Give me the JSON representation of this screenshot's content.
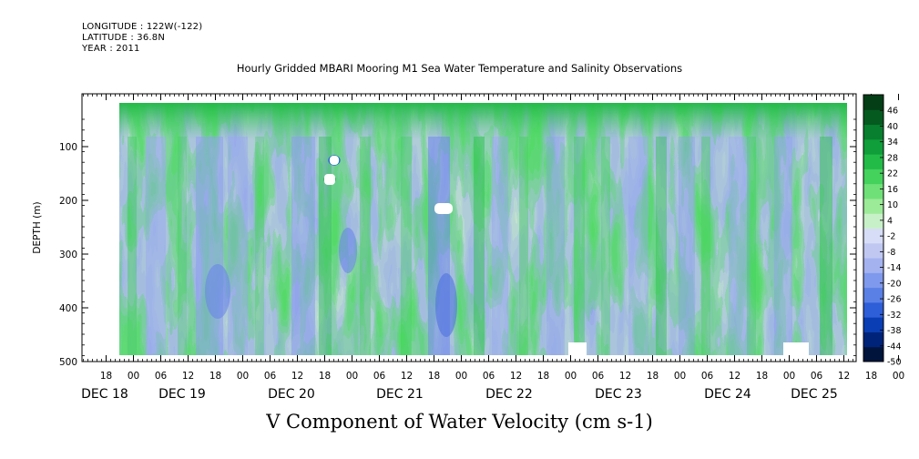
{
  "header": {
    "longitude": "LONGITUDE : 122W(-122)",
    "latitude": "LATITUDE : 36.8N",
    "year": "YEAR : 2011"
  },
  "title": "Hourly Gridded MBARI Mooring M1 Sea Water Temperature and Salinity Observations",
  "chart_data": {
    "type": "heatmap",
    "title": "Hourly Gridded MBARI Mooring M1 Sea Water Temperature and Salinity Observations",
    "xlabel": "V Component of Water Velocity (cm s-1)",
    "ylabel": "DEPTH (m)",
    "x_hour_ticks": [
      "18",
      "00",
      "06",
      "12",
      "18",
      "00",
      "06",
      "12",
      "18",
      "00",
      "06",
      "12",
      "18",
      "00",
      "06",
      "12",
      "18",
      "00",
      "06",
      "12",
      "18",
      "00",
      "06",
      "12",
      "18",
      "00",
      "06",
      "12",
      "18",
      "00",
      "06",
      "12"
    ],
    "x_date_labels": [
      "DEC 18",
      "DEC 19",
      "DEC 20",
      "DEC 21",
      "DEC 22",
      "DEC 23",
      "DEC 24",
      "DEC 25"
    ],
    "y_ticks": [
      "100",
      "200",
      "300",
      "400",
      "500"
    ],
    "ylim": [
      0,
      500
    ],
    "y_inverted": true,
    "colorbar_labels": [
      "46",
      "40",
      "34",
      "28",
      "22",
      "16",
      "10",
      "4",
      "-2",
      "-8",
      "-14",
      "-20",
      "-26",
      "-32",
      "-38",
      "-44",
      "-50"
    ],
    "colorbar_range": [
      -50,
      52
    ],
    "colorbar_colors": [
      "#00143c",
      "#00237a",
      "#0a3eb4",
      "#2e5ed8",
      "#5a80e6",
      "#7f99ec",
      "#a4b2f0",
      "#c0c8f2",
      "#d7ddf6",
      "#c8f0c8",
      "#9ceb98",
      "#6fe078",
      "#44d15c",
      "#22bb48",
      "#0f9e3a",
      "#077f2e",
      "#055a20",
      "#033e16"
    ],
    "series": [
      {
        "name": "",
        "values": "gridded velocity field (hourly, 0-480 m)"
      }
    ]
  }
}
